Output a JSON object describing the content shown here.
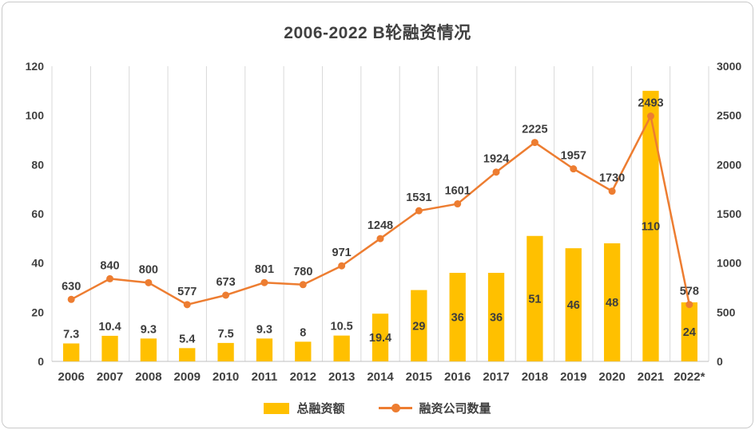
{
  "chart_data": {
    "type": "bar",
    "subtype": "combo-bar-line",
    "title": "2006-2022 B轮融资情况",
    "categories": [
      "2006",
      "2007",
      "2008",
      "2009",
      "2010",
      "2011",
      "2012",
      "2013",
      "2014",
      "2015",
      "2016",
      "2017",
      "2018",
      "2019",
      "2020",
      "2021",
      "2022*"
    ],
    "series": [
      {
        "name": "总融资额",
        "type": "bar",
        "axis": "left",
        "color": "#FFC000",
        "values": [
          7.3,
          10.4,
          9.3,
          5.4,
          7.5,
          9.3,
          8,
          10.5,
          19.4,
          29,
          36,
          36,
          51,
          46,
          48,
          110,
          24
        ]
      },
      {
        "name": "融资公司数量",
        "type": "line",
        "axis": "right",
        "color": "#ED7D31",
        "values": [
          630,
          840,
          800,
          577,
          673,
          801,
          780,
          971,
          1248,
          1531,
          1601,
          1924,
          2225,
          1957,
          1730,
          2493,
          578
        ]
      }
    ],
    "left_axis": {
      "min": 0,
      "max": 120,
      "ticks": [
        "0",
        "20",
        "40",
        "60",
        "80",
        "100",
        "120"
      ]
    },
    "right_axis": {
      "min": 0,
      "max": 3000,
      "ticks": [
        "0",
        "500",
        "1000",
        "1500",
        "2000",
        "2500",
        "3000"
      ]
    },
    "legend_position": "bottom",
    "grid": "vertical",
    "grid_color": "#d9d9d9",
    "axis_line_color": "#bfbfbf",
    "text_color": "#404040"
  }
}
